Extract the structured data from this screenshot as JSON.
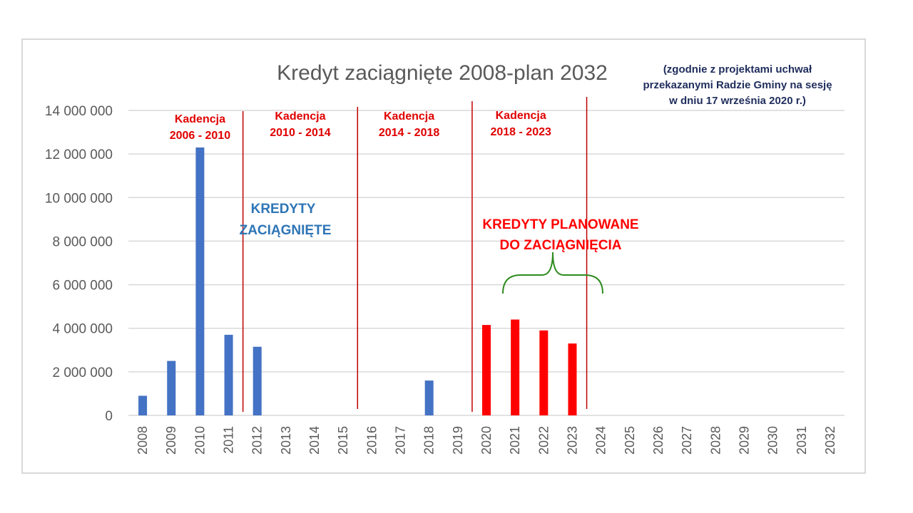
{
  "chart_data": {
    "type": "bar",
    "title": "Kredyt zaciągnięte 2008-plan 2032",
    "note": [
      "(zgodnie z projektami uchwał",
      "przekazanymi Radzie Gminy na sesję",
      "w dniu 17 września 2020 r.)"
    ],
    "ylim": [
      0,
      14000000
    ],
    "yticks": [
      {
        "value": 0,
        "label": "0"
      },
      {
        "value": 2000000,
        "label": "2 000 000"
      },
      {
        "value": 4000000,
        "label": "4 000 000"
      },
      {
        "value": 6000000,
        "label": "6 000 000"
      },
      {
        "value": 8000000,
        "label": "8 000 000"
      },
      {
        "value": 10000000,
        "label": "10 000 000"
      },
      {
        "value": 12000000,
        "label": "12 000 000"
      },
      {
        "value": 14000000,
        "label": "14 000 000"
      }
    ],
    "grid": true,
    "categories": [
      "2008",
      "2009",
      "2010",
      "2011",
      "2012",
      "2013",
      "2014",
      "2015",
      "2016",
      "2017",
      "2018",
      "2019",
      "2020",
      "2021",
      "2022",
      "2023",
      "2024",
      "2025",
      "2026",
      "2027",
      "2028",
      "2029",
      "2030",
      "2031",
      "2032"
    ],
    "series": [
      {
        "color": "#4472c4",
        "values": [
          900000,
          2500000,
          12300000,
          3700000,
          3150000,
          0,
          0,
          0,
          0,
          0,
          1600000,
          0,
          0,
          0,
          0,
          0,
          0,
          0,
          0,
          0,
          0,
          0,
          0,
          0,
          0
        ]
      },
      {
        "color": "#ff0000",
        "values": [
          0,
          0,
          0,
          0,
          0,
          0,
          0,
          0,
          0,
          0,
          0,
          0,
          4150000,
          4400000,
          3900000,
          3300000,
          0,
          0,
          0,
          0,
          0,
          0,
          0,
          0,
          0
        ]
      }
    ],
    "term_dividers": [
      2011.5,
      2015.5,
      2019.5,
      2023.5
    ],
    "terms": [
      {
        "label": "Kadencja",
        "years": "2006 - 2010",
        "center": 2010
      },
      {
        "label": "Kadencja",
        "years": "2010 - 2014",
        "center": 2013.5
      },
      {
        "label": "Kadencja",
        "years": "2014 - 2018",
        "center": 2017.3
      },
      {
        "label": "Kadencja",
        "years": "2018 - 2023",
        "center": 2021.2
      }
    ],
    "annotations": {
      "taken": [
        "KREDYTY",
        "ZACIĄGNIĘTE"
      ],
      "planned": [
        "KREDYTY PLANOWANE",
        "DO ZACIĄGNIĘCIA"
      ]
    },
    "colors": {
      "taken": "#4472c4",
      "planned": "#ff0000",
      "divider": "#c00000",
      "brace": "#2e8b1f"
    }
  }
}
